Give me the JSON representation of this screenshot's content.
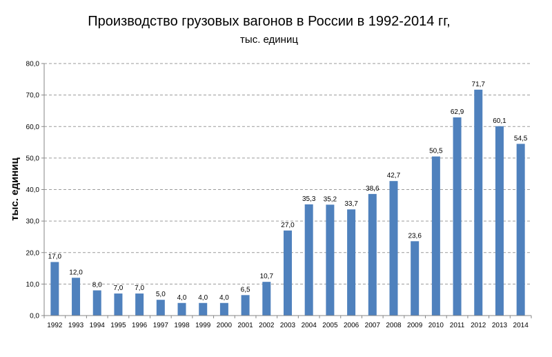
{
  "chart_data": {
    "type": "bar",
    "title": "Производство грузовых вагонов в России в 1992-2014 гг,",
    "subtitle": "тыс. единиц",
    "xlabel": "",
    "ylabel": "тыс. единиц",
    "ylim": [
      0,
      80
    ],
    "ytick_step": 10,
    "ytick_labels": [
      "0,0",
      "10,0",
      "20,0",
      "30,0",
      "40,0",
      "50,0",
      "60,0",
      "70,0",
      "80,0"
    ],
    "grid": true,
    "legend": "none",
    "bar_color": "#4f81bd",
    "categories": [
      "1992",
      "1993",
      "1994",
      "1995",
      "1996",
      "1997",
      "1998",
      "1999",
      "2000",
      "2001",
      "2002",
      "2003",
      "2004",
      "2005",
      "2006",
      "2007",
      "2008",
      "2009",
      "2010",
      "2011",
      "2012",
      "2013",
      "2014"
    ],
    "values": [
      17.0,
      12.0,
      8.0,
      7.0,
      7.0,
      5.0,
      4.0,
      4.0,
      4.0,
      6.5,
      10.7,
      27.0,
      35.3,
      35.2,
      33.7,
      38.6,
      42.7,
      23.6,
      50.5,
      62.9,
      71.7,
      60.1,
      54.5
    ],
    "data_labels": [
      "17,0",
      "12,0",
      "8,0",
      "7,0",
      "7,0",
      "5,0",
      "4,0",
      "4,0",
      "4,0",
      "6,5",
      "10,7",
      "27,0",
      "35,3",
      "35,2",
      "33,7",
      "38,6",
      "42,7",
      "23,6",
      "50,5",
      "62,9",
      "71,7",
      "60,1",
      "54,5"
    ]
  }
}
